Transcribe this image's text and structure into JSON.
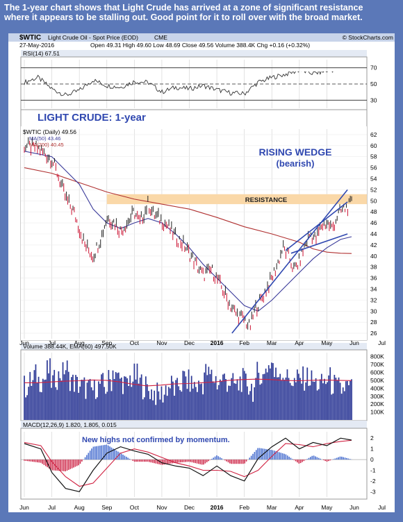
{
  "caption": {
    "line1": "The 1-year chart shows that Light Crude has arrived at a zone of significant resistance",
    "line2": "where it appears to be stalling out. Good point for it to roll over with the broad market."
  },
  "header": {
    "symbol": "$WTIC",
    "name": "Light Crude Oil - Spot Price (EOD)",
    "exchange": "CME",
    "date": "27-May-2016",
    "quote": "Open 49.31   High 49.60   Low 48.69   Close 49.56   Volume 388.4K   Chg +0.16 (+0.32%)",
    "watermark": "© StockCharts.com"
  },
  "annotations": {
    "panel_title": "LIGHT CRUDE: 1-year",
    "wedge_line1": "RISING WEDGE",
    "wedge_line2": "(bearish)",
    "resistance": "RESISTANCE",
    "macd_note": "New highs not confirmed by momentum."
  },
  "colors": {
    "price_up": "#222222",
    "price_down": "#cc1030",
    "ma50": "#3a3a9a",
    "ma200": "#b03030",
    "resistance_zone": "#fad8a8",
    "annotation_blue": "#3048b0",
    "volume_bar": "#2e3a96",
    "macd_histogram_pos": "#4a70d0",
    "macd_histogram_neg": "#d03050"
  },
  "chart_data": [
    {
      "type": "line",
      "title": "RSI(14) 67.51",
      "legend": [
        "RSI(14) 67.51"
      ],
      "ylim": [
        20,
        80
      ],
      "yticks": [
        "70",
        "50",
        "30"
      ],
      "reference_lines": [
        70,
        50,
        30
      ],
      "x_months": [
        "Jun",
        "Jul",
        "Aug",
        "Sep",
        "Oct",
        "Nov",
        "Dec",
        "2016",
        "Feb",
        "Mar",
        "Apr",
        "May",
        "Jun",
        "Jul"
      ],
      "x": [
        0,
        0.5,
        1.0,
        1.5,
        2.0,
        2.5,
        3.0,
        3.5,
        4.0,
        4.5,
        5.0,
        5.5,
        6.0,
        6.5,
        7.0,
        7.5,
        8.0,
        8.5,
        9.0,
        9.5,
        10.0,
        10.5,
        11.0,
        11.5,
        11.9
      ],
      "values": [
        52,
        58,
        44,
        36,
        42,
        55,
        48,
        46,
        53,
        52,
        40,
        46,
        44,
        48,
        43,
        39,
        38,
        52,
        58,
        62,
        67,
        63,
        66,
        69,
        67.5
      ]
    },
    {
      "type": "line",
      "title": "$WTIC (Daily) 49.56",
      "legend": [
        "$WTIC (Daily) 49.56",
        "MA(50) 43.46",
        "MA(200) 40.45"
      ],
      "ylim": [
        25,
        63
      ],
      "yticks": [
        "62",
        "60",
        "58",
        "56",
        "54",
        "52",
        "50",
        "48",
        "46",
        "44",
        "42",
        "40",
        "38",
        "36",
        "34",
        "32",
        "30",
        "28",
        "26"
      ],
      "x_months": [
        "Jun",
        "Jul",
        "Aug",
        "Sep",
        "Oct",
        "Nov",
        "Dec",
        "2016",
        "Feb",
        "Mar",
        "Apr",
        "May",
        "Jun",
        "Jul"
      ],
      "series": [
        {
          "name": "$WTIC (Daily) 49.56",
          "x": [
            0.0,
            0.5,
            1.0,
            1.2,
            1.5,
            1.8,
            2.0,
            2.2,
            2.5,
            2.8,
            3.0,
            3.3,
            3.5,
            3.8,
            4.0,
            4.2,
            4.5,
            4.7,
            5.0,
            5.2,
            5.5,
            5.8,
            6.0,
            6.3,
            6.5,
            6.8,
            7.0,
            7.2,
            7.5,
            7.7,
            8.0,
            8.2,
            8.4,
            8.6,
            8.8,
            9.0,
            9.2,
            9.4,
            9.6,
            9.8,
            10.0,
            10.2,
            10.4,
            10.6,
            10.8,
            11.0,
            11.2,
            11.4,
            11.6,
            11.8,
            11.9
          ],
          "values": [
            60.0,
            59.5,
            57.5,
            55.0,
            50.5,
            48.0,
            45.0,
            42.0,
            40.0,
            43.5,
            47.0,
            46.0,
            44.5,
            46.5,
            48.0,
            46.0,
            49.5,
            47.5,
            46.5,
            45.5,
            43.5,
            42.0,
            40.5,
            38.0,
            36.5,
            37.5,
            36.0,
            34.0,
            31.0,
            29.5,
            28.5,
            27.0,
            30.5,
            32.0,
            34.0,
            36.0,
            38.5,
            41.5,
            40.0,
            37.5,
            39.0,
            42.0,
            44.0,
            43.0,
            45.5,
            46.0,
            45.0,
            47.5,
            48.5,
            49.0,
            49.6
          ]
        },
        {
          "name": "MA(50) 43.46",
          "x": [
            0.0,
            1.0,
            2.0,
            2.5,
            3.0,
            3.5,
            4.0,
            4.5,
            5.0,
            5.5,
            6.0,
            6.5,
            7.0,
            7.5,
            8.0,
            8.5,
            9.0,
            9.5,
            10.0,
            10.5,
            11.0,
            11.5,
            11.9
          ],
          "values": [
            59.0,
            58.0,
            53.0,
            48.5,
            46.0,
            45.0,
            46.0,
            46.8,
            46.0,
            44.0,
            41.5,
            38.5,
            36.0,
            33.5,
            31.0,
            30.0,
            32.0,
            34.5,
            37.0,
            39.5,
            41.5,
            43.0,
            43.5
          ]
        },
        {
          "name": "MA(200) 40.45",
          "x": [
            0.0,
            1.0,
            2.0,
            3.0,
            4.0,
            5.0,
            6.0,
            7.0,
            8.0,
            9.0,
            10.0,
            10.5,
            11.0,
            11.5,
            11.9
          ],
          "values": [
            56.0,
            55.0,
            53.3,
            51.6,
            50.3,
            49.4,
            48.5,
            47.0,
            45.3,
            44.0,
            42.5,
            41.3,
            40.7,
            40.5,
            40.45
          ]
        }
      ],
      "resistance_zone": [
        49.4,
        51.2
      ],
      "wedge_lines": [
        {
          "x": [
            7.55,
            11.75
          ],
          "y": [
            26.0,
            52.0
          ]
        },
        {
          "x": [
            9.5,
            11.75
          ],
          "y": [
            41.0,
            49.8
          ]
        },
        {
          "x": [
            9.7,
            11.75
          ],
          "y": [
            40.5,
            44.0
          ]
        }
      ]
    },
    {
      "type": "bar",
      "title": "Volume 388.44K, EMA(60) 497.50K",
      "legend": [
        "Volume 388.44K",
        "EMA(60) 497.50K"
      ],
      "ylim": [
        0,
        850
      ],
      "yticks": [
        "800K",
        "700K",
        "600K",
        "500K",
        "400K",
        "300K",
        "200K",
        "100K"
      ],
      "x_months": [
        "Jun",
        "Jul",
        "Aug",
        "Sep",
        "Oct",
        "Nov",
        "Dec",
        "2016",
        "Feb",
        "Mar",
        "Apr",
        "May",
        "Jun",
        "Jul"
      ],
      "volume_profile": [
        420,
        480,
        560,
        500,
        520,
        620,
        480,
        540,
        590,
        650,
        520,
        470,
        440,
        420,
        400,
        380,
        420,
        450,
        410,
        500,
        620,
        520,
        480,
        430,
        520,
        560,
        470,
        420,
        380,
        350,
        320,
        330,
        410,
        440,
        380,
        450,
        520,
        480,
        440,
        420,
        460,
        600,
        560,
        520,
        470,
        520,
        480,
        450,
        430,
        500,
        470,
        420,
        380,
        600,
        540,
        680,
        720,
        560,
        620,
        580,
        520,
        470,
        510,
        520,
        540,
        500,
        460,
        440,
        480,
        520,
        450,
        400,
        380,
        420,
        390
      ],
      "ema60": [
        470,
        470,
        480,
        490,
        495,
        505,
        500,
        480,
        450,
        430,
        440,
        455,
        460,
        470,
        480,
        500,
        510,
        515,
        510,
        500,
        495,
        500,
        505,
        500,
        497
      ]
    },
    {
      "type": "line",
      "title": "MACD(12,26,9) 1.820, 1.805, 0.015",
      "legend": [
        "MACD(12,26,9) 1.820",
        "1.805",
        "0.015"
      ],
      "ylim": [
        -3.5,
        2.6
      ],
      "yticks": [
        "2",
        "1",
        "0",
        "-1",
        "-2",
        "-3"
      ],
      "x_months": [
        "Jun",
        "Jul",
        "Aug",
        "Sep",
        "Oct",
        "Nov",
        "Dec",
        "2016",
        "Feb",
        "Mar",
        "Apr",
        "May",
        "Jun",
        "Jul"
      ],
      "series": [
        {
          "name": "MACD(12,26,9) 1.820",
          "x": [
            0.0,
            0.6,
            1.0,
            1.5,
            2.0,
            2.5,
            3.0,
            3.5,
            4.0,
            4.5,
            5.0,
            5.5,
            6.0,
            6.5,
            7.0,
            7.5,
            8.0,
            8.5,
            9.0,
            9.5,
            10.0,
            10.5,
            11.0,
            11.5,
            11.9
          ],
          "values": [
            1.5,
            1.0,
            -1.2,
            -2.7,
            -3.0,
            -1.0,
            0.6,
            1.2,
            0.8,
            0.5,
            -0.3,
            -0.6,
            -0.8,
            -1.5,
            -0.6,
            -1.5,
            -2.0,
            0.1,
            1.2,
            2.0,
            1.0,
            1.6,
            1.3,
            2.0,
            1.82
          ]
        },
        {
          "name": "1.805",
          "x": [
            0.0,
            0.6,
            1.0,
            1.5,
            2.0,
            2.5,
            3.0,
            3.5,
            4.0,
            4.5,
            5.0,
            5.5,
            6.0,
            6.5,
            7.0,
            7.5,
            8.0,
            8.5,
            9.0,
            9.5,
            10.0,
            10.5,
            11.0,
            11.5,
            11.9
          ],
          "values": [
            1.6,
            1.3,
            -0.2,
            -1.6,
            -2.5,
            -2.2,
            -0.8,
            0.6,
            1.0,
            0.7,
            0.2,
            -0.3,
            -0.6,
            -1.0,
            -1.0,
            -1.1,
            -1.6,
            -1.0,
            0.3,
            1.5,
            1.4,
            1.2,
            1.5,
            1.7,
            1.805
          ]
        }
      ]
    }
  ]
}
